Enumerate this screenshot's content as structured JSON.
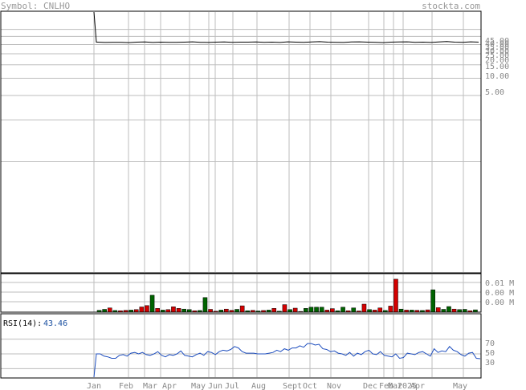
{
  "header": {
    "symbol_label": "Symbol: CNLHO",
    "brand": "stockta.com"
  },
  "colors": {
    "grid": "#bdbdbd",
    "frame": "#000000",
    "price_line": "#000000",
    "vol_up": "#006400",
    "vol_down": "#d40000",
    "rsi_line": "#1f4fbf"
  },
  "chart_data": [
    {
      "type": "line",
      "panel": "price",
      "y_scale": "log",
      "y_tick_labels": [
        "5.00",
        "10.00",
        "15.00",
        "20.00",
        "25.00",
        "30.00",
        "35.00",
        "40.00",
        "45.00"
      ],
      "x_tick_labels": [
        "Jan",
        "Feb",
        "Mar",
        "Apr",
        "May",
        "Jun",
        "Jul",
        "Aug",
        "Sept",
        "Oct",
        "Nov",
        "Dec",
        "Feb",
        "Mar",
        "2025",
        "Apr",
        "May"
      ],
      "series": [
        {
          "values": [
            60,
            36.4,
            36.2,
            36.3,
            36.3,
            36.1,
            36.4,
            36.5,
            36.2,
            36.4,
            36.3,
            36.3,
            36.4,
            36.6,
            36.3,
            36.2,
            36.4,
            36.5,
            36.3,
            36.4,
            36.4,
            36.5,
            36.3,
            36.4,
            36.2,
            36.6,
            36.4,
            36.3,
            36.5,
            36.7,
            36.4,
            36.3,
            36.2,
            36.5,
            36.6,
            36.4,
            36.3,
            36.1,
            36.4,
            36.5,
            36.6,
            36.3,
            36.4,
            36.2,
            36.5,
            36.8,
            36.4,
            36.3,
            36.6,
            36.4
          ]
        }
      ]
    },
    {
      "type": "bar",
      "panel": "volume",
      "y_tick_labels": [
        "0.01 M",
        "0.00 M",
        "0.00 M"
      ],
      "values": [
        0.0008,
        0.0012,
        0.0018,
        0.0007,
        0.0006,
        0.0008,
        0.0009,
        0.0011,
        0.0022,
        0.0028,
        0.0072,
        0.0016,
        0.0009,
        0.0011,
        0.0023,
        0.0016,
        0.0013,
        0.0011,
        0.0006,
        0.0007,
        0.0062,
        0.0012,
        0.0004,
        0.0009,
        0.0013,
        0.0008,
        0.0012,
        0.0027,
        0.0006,
        0.0008,
        0.0005,
        0.0007,
        0.0009,
        0.0016,
        0.0004,
        0.0032,
        0.0011,
        0.0017,
        0.0003,
        0.0016,
        0.0021,
        0.0021,
        0.0021,
        0.0009,
        0.0015,
        0.0006,
        0.0021,
        0.0006,
        0.0018,
        0.0005,
        0.0034,
        0.0011,
        0.0009,
        0.0018,
        0.0007,
        0.0026,
        0.014,
        0.0013,
        0.0009,
        0.0009,
        0.0008,
        0.0007,
        0.001,
        0.0095,
        0.0019,
        0.0012,
        0.0024,
        0.0013,
        0.0011,
        0.0012,
        0.0006,
        0.001
      ],
      "up": [
        true,
        true,
        false,
        true,
        false,
        false,
        true,
        false,
        false,
        false,
        true,
        false,
        true,
        false,
        false,
        false,
        true,
        true,
        false,
        true,
        true,
        false,
        false,
        true,
        false,
        false,
        true,
        false,
        true,
        false,
        true,
        false,
        true,
        false,
        true,
        false,
        true,
        false,
        false,
        true,
        true,
        true,
        true,
        false,
        false,
        true,
        true,
        false,
        true,
        false,
        false,
        true,
        false,
        false,
        true,
        false,
        false,
        true,
        false,
        true,
        false,
        true,
        false,
        true,
        false,
        true,
        true,
        false,
        true,
        true,
        false,
        true
      ]
    },
    {
      "type": "line",
      "panel": "rsi",
      "label": "RSI(14):",
      "last_value": "43.46",
      "y_tick_labels": [
        "70",
        "50",
        "30"
      ],
      "series": [
        {
          "values": [
            0,
            50,
            50,
            47,
            46,
            44,
            44,
            48,
            49,
            47,
            51,
            52,
            50,
            52,
            49,
            48,
            50,
            53,
            48,
            46,
            49,
            48,
            50,
            54,
            48,
            47,
            46,
            49,
            51,
            48,
            53,
            52,
            49,
            53,
            55,
            54,
            56,
            60,
            58,
            53,
            51,
            51,
            51,
            50,
            50,
            50,
            51,
            52,
            55,
            53,
            57,
            55,
            58,
            58,
            61,
            59,
            64,
            64,
            62,
            63,
            57,
            56,
            53,
            54,
            51,
            50,
            48,
            52,
            47,
            51,
            49,
            53,
            55,
            50,
            49,
            53,
            48,
            47,
            46,
            50,
            44,
            45,
            51,
            50,
            49,
            52,
            53,
            50,
            47,
            57,
            52,
            54,
            53,
            60,
            55,
            53,
            49,
            47,
            51,
            52,
            44,
            43.46
          ]
        }
      ]
    }
  ]
}
